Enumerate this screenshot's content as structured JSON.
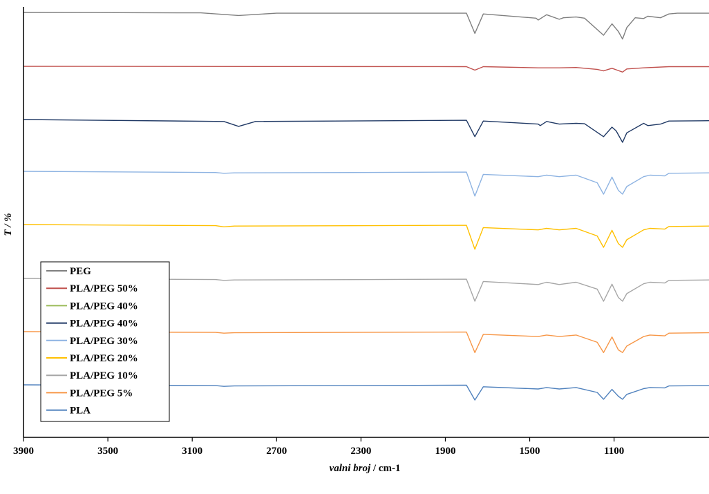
{
  "chart_data": {
    "type": "line",
    "xlabel_italic": "valni broj",
    "xlabel_unit": " / cm-1",
    "ylabel": "T / %",
    "xlim": [
      3900,
      650
    ],
    "x_reversed": true,
    "x_ticks": [
      3900,
      3500,
      3100,
      2700,
      2300,
      1900,
      1500,
      1100
    ],
    "grid": false,
    "legend_position": "bottom-left",
    "series": [
      {
        "name": "PEG",
        "color": "#7f7f7f",
        "points": [
          [
            3900,
            100
          ],
          [
            3060,
            99
          ],
          [
            2880,
            92
          ],
          [
            2700,
            98
          ],
          [
            1800,
            98
          ],
          [
            1760,
            45
          ],
          [
            1720,
            96
          ],
          [
            1470,
            85
          ],
          [
            1460,
            80
          ],
          [
            1420,
            94
          ],
          [
            1360,
            82
          ],
          [
            1340,
            86
          ],
          [
            1280,
            88
          ],
          [
            1240,
            85
          ],
          [
            1150,
            40
          ],
          [
            1110,
            70
          ],
          [
            1080,
            50
          ],
          [
            1060,
            30
          ],
          [
            1040,
            60
          ],
          [
            1000,
            86
          ],
          [
            960,
            84
          ],
          [
            940,
            90
          ],
          [
            880,
            86
          ],
          [
            840,
            96
          ],
          [
            800,
            98
          ],
          [
            650,
            98
          ]
        ]
      },
      {
        "name": "PLA/PEG 50%",
        "color": "#c0504d",
        "points": [
          [
            3900,
            100
          ],
          [
            1800,
            99
          ],
          [
            1760,
            90
          ],
          [
            1720,
            99
          ],
          [
            1460,
            96
          ],
          [
            1360,
            96
          ],
          [
            1280,
            97
          ],
          [
            1180,
            92
          ],
          [
            1150,
            88
          ],
          [
            1110,
            95
          ],
          [
            1090,
            91
          ],
          [
            1060,
            85
          ],
          [
            1040,
            93
          ],
          [
            960,
            96
          ],
          [
            840,
            99
          ],
          [
            650,
            99
          ]
        ]
      },
      {
        "name": "PLA/PEG 40%",
        "color": "#9bbb59",
        "points": []
      },
      {
        "name": "PLA/PEG 40%",
        "color": "#1f3864",
        "points": [
          [
            3900,
            100
          ],
          [
            2950,
            95
          ],
          [
            2880,
            82
          ],
          [
            2800,
            95
          ],
          [
            1800,
            98
          ],
          [
            1760,
            55
          ],
          [
            1720,
            96
          ],
          [
            1460,
            88
          ],
          [
            1450,
            84
          ],
          [
            1420,
            95
          ],
          [
            1360,
            88
          ],
          [
            1280,
            90
          ],
          [
            1240,
            89
          ],
          [
            1150,
            55
          ],
          [
            1110,
            80
          ],
          [
            1090,
            70
          ],
          [
            1060,
            40
          ],
          [
            1040,
            65
          ],
          [
            960,
            90
          ],
          [
            940,
            84
          ],
          [
            880,
            88
          ],
          [
            840,
            96
          ],
          [
            650,
            97
          ]
        ]
      },
      {
        "name": "PLA/PEG 30%",
        "color": "#8db3e2",
        "points": [
          [
            3900,
            100
          ],
          [
            2990,
            97
          ],
          [
            2950,
            95
          ],
          [
            2900,
            96
          ],
          [
            1800,
            98
          ],
          [
            1760,
            35
          ],
          [
            1720,
            92
          ],
          [
            1460,
            86
          ],
          [
            1420,
            90
          ],
          [
            1360,
            86
          ],
          [
            1280,
            90
          ],
          [
            1180,
            70
          ],
          [
            1150,
            40
          ],
          [
            1110,
            85
          ],
          [
            1080,
            50
          ],
          [
            1060,
            40
          ],
          [
            1040,
            60
          ],
          [
            960,
            86
          ],
          [
            930,
            90
          ],
          [
            860,
            88
          ],
          [
            840,
            95
          ],
          [
            650,
            96
          ]
        ]
      },
      {
        "name": "PLA/PEG 20%",
        "color": "#ffc000",
        "points": [
          [
            3900,
            100
          ],
          [
            2990,
            97
          ],
          [
            2950,
            94
          ],
          [
            2900,
            96
          ],
          [
            1800,
            98
          ],
          [
            1760,
            35
          ],
          [
            1720,
            92
          ],
          [
            1460,
            86
          ],
          [
            1420,
            90
          ],
          [
            1360,
            86
          ],
          [
            1280,
            90
          ],
          [
            1180,
            70
          ],
          [
            1150,
            40
          ],
          [
            1110,
            85
          ],
          [
            1080,
            50
          ],
          [
            1060,
            40
          ],
          [
            1040,
            60
          ],
          [
            960,
            86
          ],
          [
            930,
            90
          ],
          [
            860,
            88
          ],
          [
            840,
            95
          ],
          [
            650,
            96
          ]
        ]
      },
      {
        "name": "PLA/PEG 10%",
        "color": "#a6a6a6",
        "points": [
          [
            3900,
            100
          ],
          [
            2990,
            97
          ],
          [
            2950,
            95
          ],
          [
            2900,
            96
          ],
          [
            1800,
            98
          ],
          [
            1760,
            40
          ],
          [
            1720,
            92
          ],
          [
            1460,
            84
          ],
          [
            1420,
            90
          ],
          [
            1360,
            84
          ],
          [
            1280,
            90
          ],
          [
            1180,
            72
          ],
          [
            1150,
            40
          ],
          [
            1110,
            85
          ],
          [
            1080,
            50
          ],
          [
            1060,
            40
          ],
          [
            1040,
            60
          ],
          [
            960,
            86
          ],
          [
            930,
            90
          ],
          [
            860,
            88
          ],
          [
            840,
            95
          ],
          [
            650,
            96
          ]
        ]
      },
      {
        "name": "PLA/PEG 5%",
        "color": "#f79646",
        "points": [
          [
            3900,
            100
          ],
          [
            2990,
            98
          ],
          [
            2950,
            96
          ],
          [
            2900,
            97
          ],
          [
            1800,
            99
          ],
          [
            1760,
            45
          ],
          [
            1720,
            93
          ],
          [
            1460,
            87
          ],
          [
            1420,
            91
          ],
          [
            1360,
            87
          ],
          [
            1280,
            91
          ],
          [
            1180,
            72
          ],
          [
            1150,
            45
          ],
          [
            1110,
            86
          ],
          [
            1080,
            52
          ],
          [
            1060,
            45
          ],
          [
            1040,
            62
          ],
          [
            960,
            87
          ],
          [
            930,
            91
          ],
          [
            860,
            89
          ],
          [
            840,
            96
          ],
          [
            650,
            97
          ]
        ]
      },
      {
        "name": "PLA",
        "color": "#4f81bd",
        "points": [
          [
            3900,
            100
          ],
          [
            2990,
            98
          ],
          [
            2950,
            96
          ],
          [
            2900,
            97
          ],
          [
            1800,
            99
          ],
          [
            1760,
            60
          ],
          [
            1720,
            95
          ],
          [
            1460,
            89
          ],
          [
            1420,
            93
          ],
          [
            1360,
            89
          ],
          [
            1280,
            93
          ],
          [
            1180,
            80
          ],
          [
            1150,
            62
          ],
          [
            1110,
            88
          ],
          [
            1080,
            70
          ],
          [
            1060,
            62
          ],
          [
            1040,
            75
          ],
          [
            960,
            90
          ],
          [
            930,
            93
          ],
          [
            860,
            92
          ],
          [
            840,
            97
          ],
          [
            650,
            98
          ]
        ]
      }
    ]
  }
}
